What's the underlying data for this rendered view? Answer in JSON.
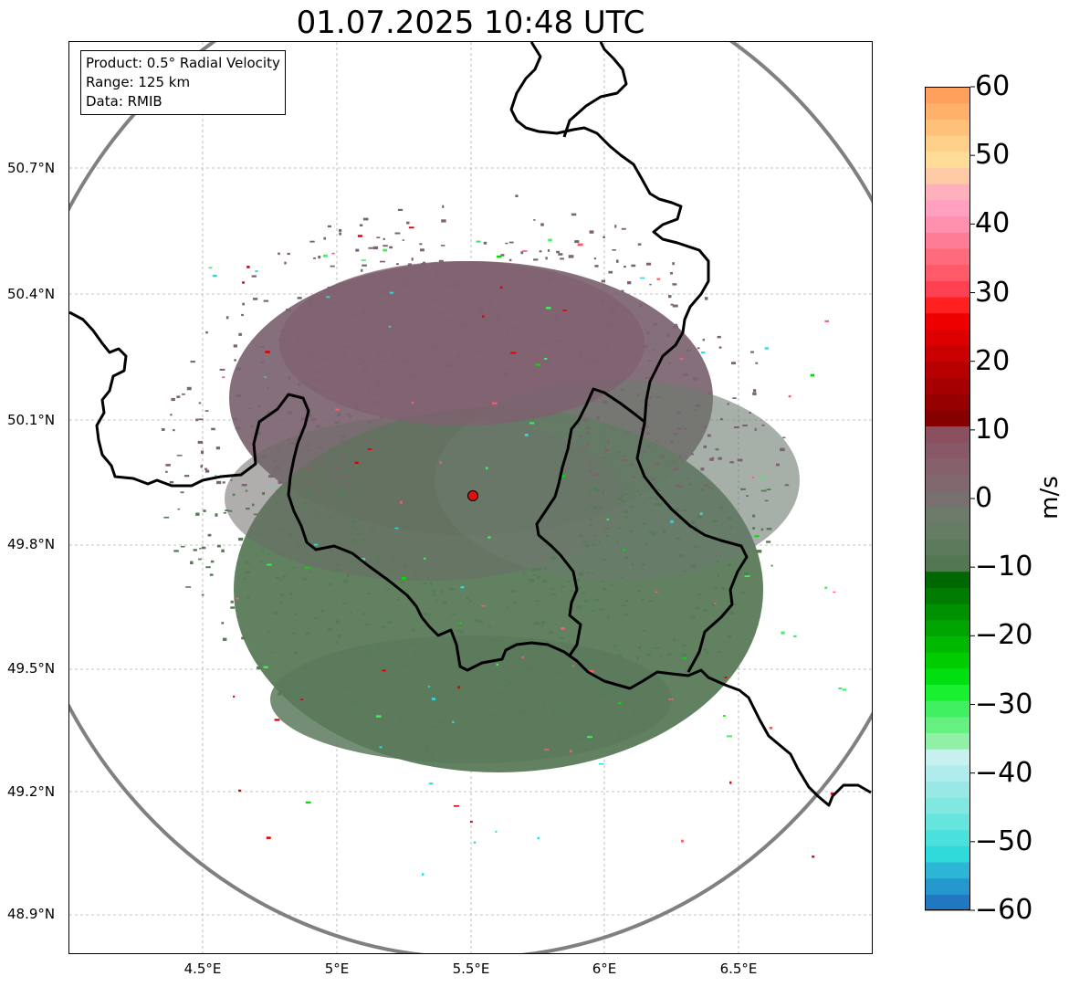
{
  "title": "01.07.2025 10:48 UTC",
  "info_box": {
    "product": "Product: 0.5° Radial Velocity",
    "range": "Range: 125 km",
    "data": "Data: RMIB"
  },
  "map": {
    "lon_range": [
      4.0,
      7.0
    ],
    "lat_range": [
      48.8,
      51.0
    ],
    "lat_ticks": [
      "50.7°N",
      "50.4°N",
      "50.1°N",
      "49.8°N",
      "49.5°N",
      "49.2°N",
      "48.9°N"
    ],
    "lon_ticks": [
      "4.5°E",
      "5°E",
      "5.5°E",
      "6°E",
      "6.5°E"
    ],
    "radar_site": {
      "lon": 5.505,
      "lat": 49.914
    },
    "range_ring_km": 125,
    "colors": {
      "approaching_green": "#587a58",
      "receding_purple": "#7b6370",
      "border": "#000000",
      "range_ring": "#808080",
      "site_marker": "#e01010"
    }
  },
  "colorbar": {
    "label": "m/s",
    "min": -60,
    "max": 60,
    "ticks": [
      "60",
      "50",
      "40",
      "30",
      "20",
      "10",
      "0",
      "−10",
      "−20",
      "−30",
      "−40",
      "−50",
      "−60"
    ],
    "palette": [
      "#1f78c0",
      "#2498cc",
      "#2bb6d6",
      "#30dada",
      "#4ae0dc",
      "#66e4de",
      "#80e8e0",
      "#9ae8e6",
      "#b0ecec",
      "#c8f0ee",
      "#90f0a8",
      "#66f080",
      "#40f060",
      "#18f030",
      "#00e010",
      "#00cc00",
      "#00b800",
      "#00a400",
      "#009000",
      "#007c00",
      "#006800",
      "#537753",
      "#5c7a5c",
      "#647d64",
      "#6d7b6a",
      "#787070",
      "#80686e",
      "#86606a",
      "#885868",
      "#8a5060",
      "#860000",
      "#960000",
      "#a60000",
      "#b80000",
      "#ca0000",
      "#dc0000",
      "#ee0000",
      "#ff2020",
      "#ff4050",
      "#ff5a6a",
      "#ff6a7c",
      "#ff7c96",
      "#ff90b0",
      "#ffa0c0",
      "#ffb0bc",
      "#ffcaa6",
      "#ffdc98",
      "#ffd08a",
      "#ffc07a",
      "#ffb06a",
      "#ffa05c"
    ]
  }
}
